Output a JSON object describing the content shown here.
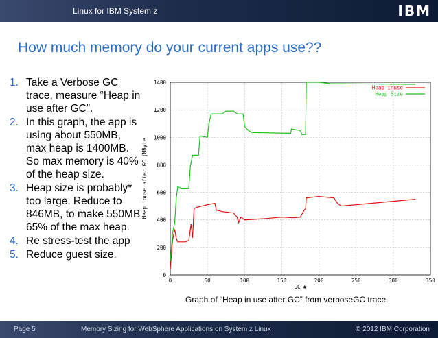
{
  "header": {
    "title": "Linux for IBM System z",
    "logo": "IBM"
  },
  "slide_title": "How much memory do your current apps use??",
  "bullets": [
    {
      "marker": "1.",
      "text": "Take a Verbose GC trace, measure “Heap in use after GC”."
    },
    {
      "marker": "2.",
      "text": "In this graph, the app is using about 550MB, max heap is 1400MB. So max memory is 40% of the heap size."
    },
    {
      "marker": "3.",
      "text": "Heap size is probably* too large. Reduce to 846MB, to make 550MB 65% of the max heap."
    },
    {
      "marker": "4.",
      "text": "Re stress-test the app"
    },
    {
      "marker": "5.",
      "text": "Reduce guest size."
    }
  ],
  "chart_data": {
    "type": "line",
    "xlabel": "GC #",
    "ylabel": "Heap inuse after GC (MByte",
    "xlim": [
      0,
      350
    ],
    "xticks": [
      0,
      50,
      100,
      150,
      200,
      250,
      300,
      350
    ],
    "ylim": [
      0,
      1400
    ],
    "yticks": [
      0,
      200,
      400,
      600,
      800,
      1000,
      1200,
      1400
    ],
    "grid": true,
    "legend": "top-right",
    "series": [
      {
        "name": "Heap inuse",
        "color": "#e01010",
        "x": [
          0,
          3,
          6,
          8,
          10,
          20,
          25,
          28,
          30,
          32,
          35,
          50,
          60,
          62,
          70,
          85,
          90,
          92,
          95,
          100,
          130,
          150,
          165,
          175,
          180,
          182,
          183,
          200,
          220,
          225,
          230,
          330
        ],
        "values": [
          40,
          250,
          330,
          270,
          240,
          240,
          250,
          370,
          270,
          480,
          490,
          510,
          520,
          470,
          460,
          450,
          420,
          380,
          420,
          400,
          410,
          420,
          415,
          420,
          470,
          480,
          560,
          570,
          560,
          520,
          500,
          550
        ]
      },
      {
        "name": "Heap Size",
        "color": "#20c020",
        "x": [
          0,
          3,
          6,
          8,
          10,
          15,
          25,
          27,
          30,
          38,
          40,
          50,
          52,
          55,
          70,
          75,
          85,
          90,
          98,
          100,
          105,
          110,
          150,
          162,
          163,
          175,
          177,
          182,
          183,
          200,
          215,
          330
        ],
        "values": [
          100,
          300,
          380,
          550,
          640,
          630,
          630,
          790,
          870,
          870,
          1010,
          1000,
          1100,
          1170,
          1170,
          1190,
          1190,
          1170,
          1170,
          1080,
          1050,
          1035,
          1030,
          1030,
          1060,
          1050,
          1020,
          1020,
          1400,
          1400,
          1390,
          1385
        ]
      }
    ]
  },
  "caption": "Graph of “Heap in use after GC” from verboseGC trace.",
  "footer": {
    "page": "Page 5",
    "center": "Memory Sizing for WebSphere Applications on System z Linux",
    "copyright": "© 2012 IBM Corporation"
  }
}
